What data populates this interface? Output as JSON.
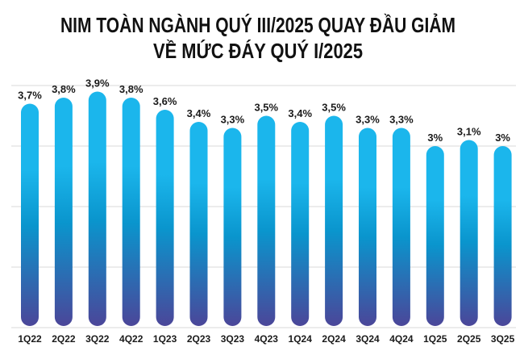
{
  "chart_data": {
    "type": "bar",
    "title": [
      "NIM TOÀN NGÀNH QUÝ III/2025 QUAY ĐẦU GIẢM",
      "VỀ MỨC ĐÁY QUÝ I/2025"
    ],
    "xlabel": "",
    "ylabel": "",
    "ylim": [
      0,
      4
    ],
    "grid": true,
    "categories": [
      "1Q22",
      "2Q22",
      "3Q22",
      "4Q22",
      "1Q23",
      "2Q23",
      "3Q23",
      "4Q23",
      "1Q24",
      "2Q24",
      "3Q24",
      "4Q24",
      "1Q25",
      "2Q25",
      "3Q25"
    ],
    "values": [
      3.7,
      3.8,
      3.9,
      3.8,
      3.6,
      3.4,
      3.3,
      3.5,
      3.4,
      3.5,
      3.3,
      3.3,
      3.0,
      3.1,
      3.0
    ],
    "data_labels": [
      "3,7%",
      "3,8%",
      "3,9%",
      "3,8%",
      "3,6%",
      "3,4%",
      "3,3%",
      "3,5%",
      "3,4%",
      "3,5%",
      "3,3%",
      "3,3%",
      "3%",
      "3,1%",
      "3%"
    ],
    "colors": {
      "bar_top": "#1bb6ec",
      "bar_mid": "#0a95cd",
      "bar_bottom": "#4b4699",
      "text": "#1a1a1a",
      "grid": "#d9d9d9"
    }
  }
}
